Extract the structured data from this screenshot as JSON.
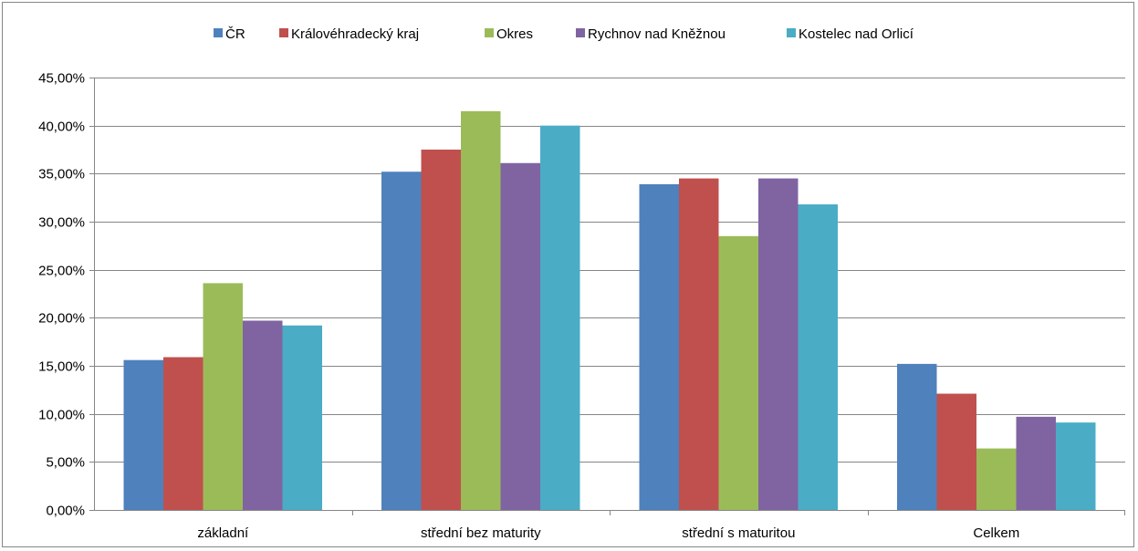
{
  "chart_data": {
    "type": "bar",
    "title": "",
    "xlabel": "",
    "ylabel": "",
    "categories": [
      "základní",
      "střední bez maturity",
      "střední s maturitou",
      "Celkem"
    ],
    "series": [
      {
        "name": "ČR",
        "color": "#4f81bd",
        "values": [
          15.6,
          35.2,
          33.9,
          15.2
        ]
      },
      {
        "name": "Královéhradecký kraj",
        "color": "#c0504d",
        "values": [
          15.9,
          37.5,
          34.5,
          12.1
        ]
      },
      {
        "name": "Okres",
        "color": "#9bbb59",
        "values": [
          23.6,
          41.5,
          28.5,
          6.4
        ]
      },
      {
        "name": "Rychnov nad Kněžnou",
        "color": "#8064a2",
        "values": [
          19.7,
          36.1,
          34.5,
          9.7
        ]
      },
      {
        "name": "Kostelec nad Orlicí",
        "color": "#4bacc6",
        "values": [
          19.2,
          40.0,
          31.8,
          9.1
        ]
      }
    ],
    "ylim": [
      0,
      45
    ],
    "yticks": [
      0,
      5,
      10,
      15,
      20,
      25,
      30,
      35,
      40,
      45
    ],
    "ytick_labels": [
      "0,00%",
      "5,00%",
      "10,00%",
      "15,00%",
      "20,00%",
      "25,00%",
      "30,00%",
      "35,00%",
      "40,00%",
      "45,00%"
    ],
    "grid": true,
    "legend_position": "top"
  }
}
